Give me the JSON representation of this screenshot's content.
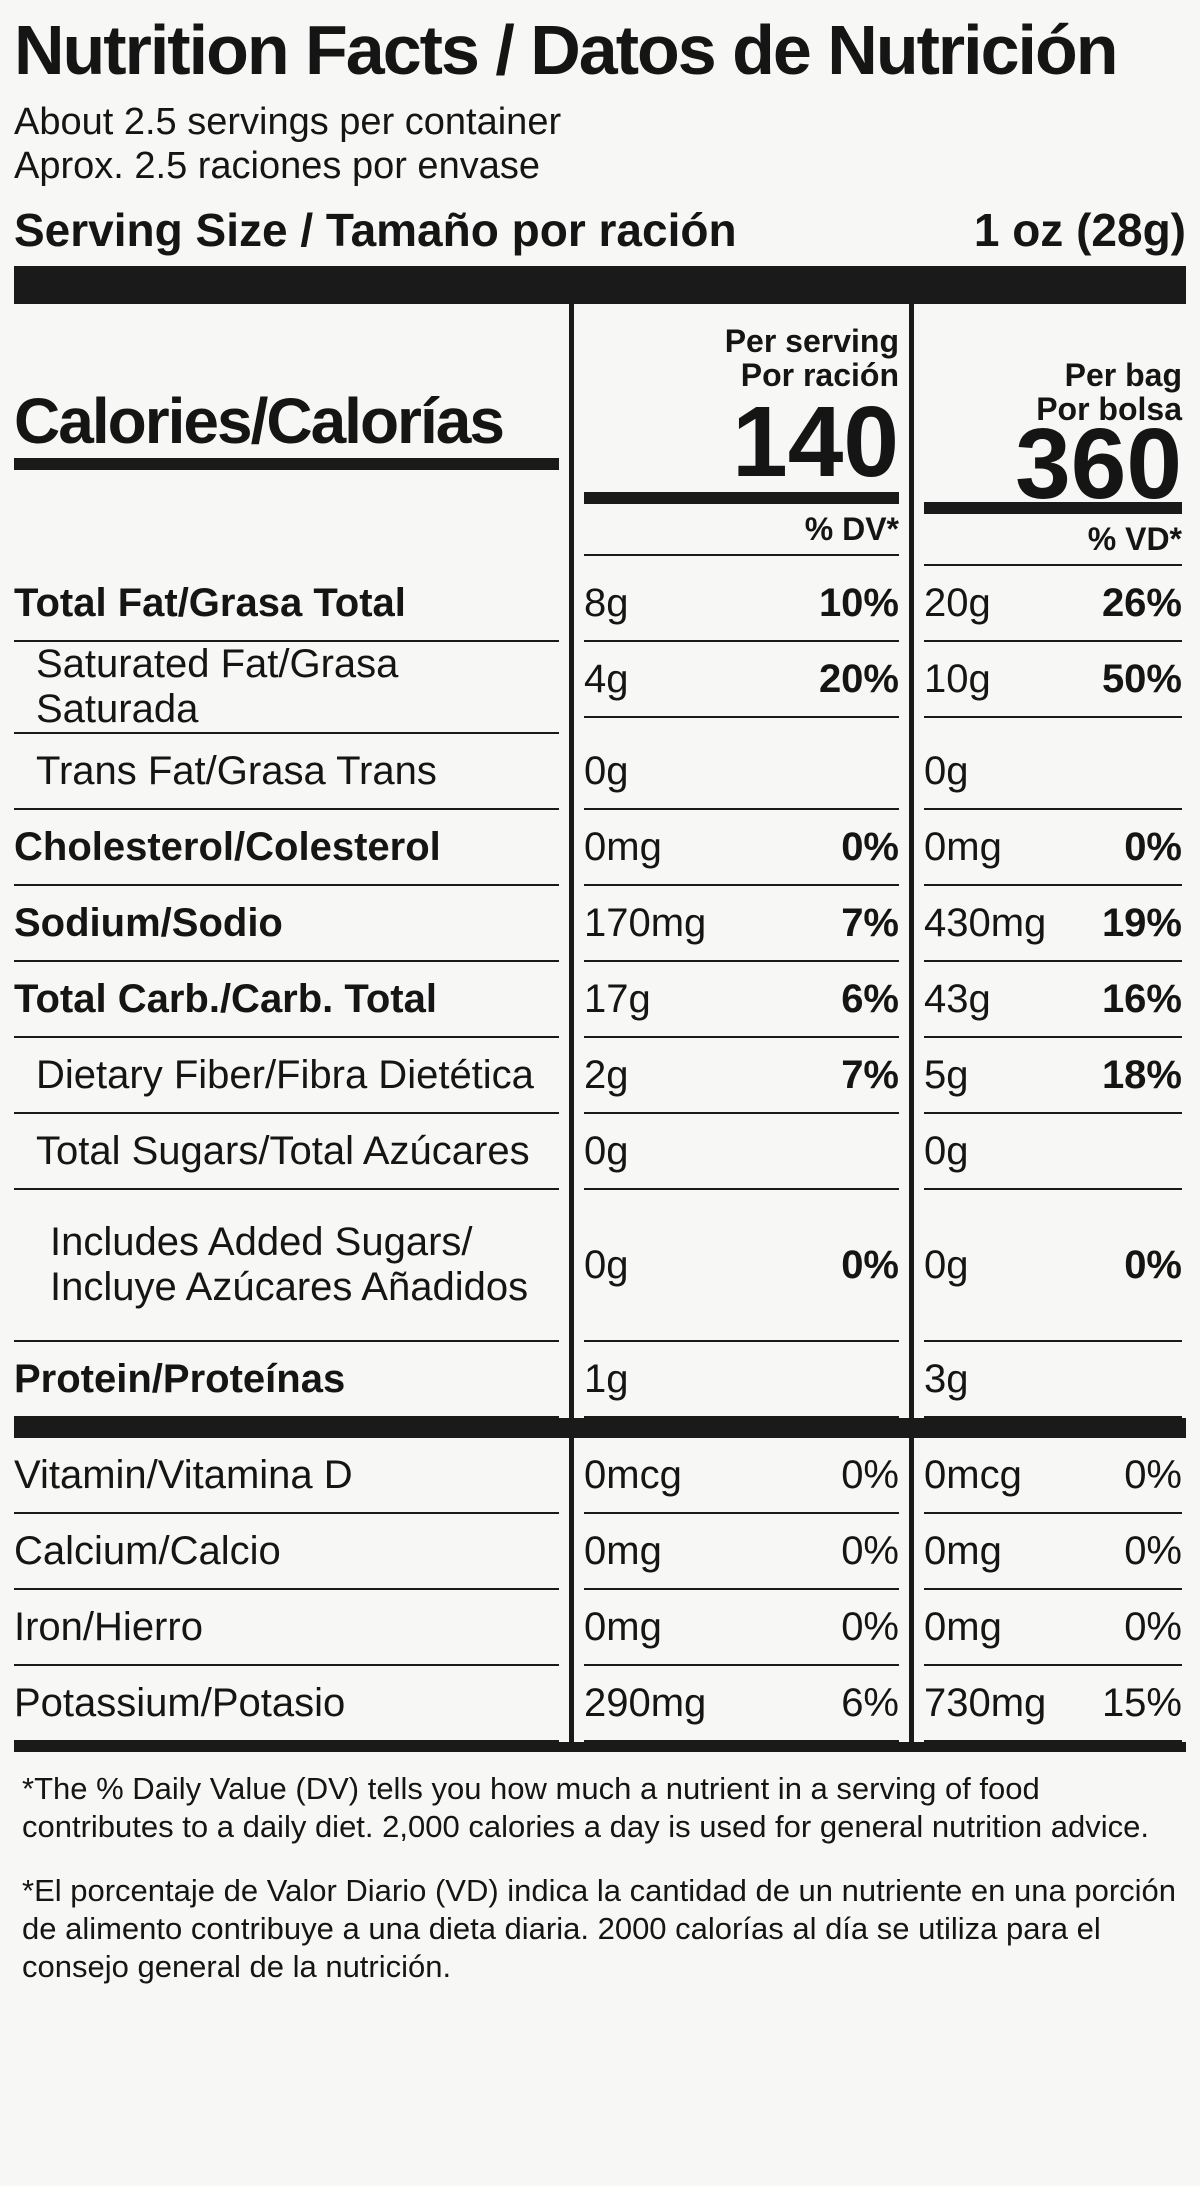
{
  "title": "Nutrition Facts / Datos de Nutrición",
  "servings": [
    "About 2.5 servings per container",
    "Aprox. 2.5 raciones por envase"
  ],
  "serving_size": {
    "label": "Serving Size / Tamaño por ración",
    "value": "1 oz (28g)"
  },
  "calories": {
    "label": "Calories/Calorías",
    "per_serving": {
      "header": [
        "Per serving",
        "Por ración"
      ],
      "value": "140",
      "dv_header": "% DV*"
    },
    "per_bag": {
      "header": [
        "Per bag",
        "Por bolsa"
      ],
      "value": "360",
      "dv_header": "% VD*"
    }
  },
  "nutrients": [
    {
      "name": [
        "Total Fat/Grasa Total"
      ],
      "serving": [
        "8g",
        "10%"
      ],
      "bag": [
        "20g",
        "26%"
      ]
    },
    {
      "name": [
        "Saturated Fat/Grasa Saturada"
      ],
      "serving": [
        "4g",
        "20%"
      ],
      "bag": [
        "10g",
        "50%"
      ]
    },
    {
      "name": [
        "Trans Fat/Grasa Trans"
      ],
      "serving": [
        "0g"
      ],
      "bag": [
        "0g"
      ]
    },
    {
      "name": [
        "Cholesterol/Colesterol"
      ],
      "serving": [
        "0mg",
        "0%"
      ],
      "bag": [
        "0mg",
        "0%"
      ]
    },
    {
      "name": [
        "Sodium/Sodio"
      ],
      "serving": [
        "170mg",
        "7%"
      ],
      "bag": [
        "430mg",
        "19%"
      ]
    },
    {
      "name": [
        "Total Carb./Carb. Total"
      ],
      "serving": [
        "17g",
        "6%"
      ],
      "bag": [
        "43g",
        "16%"
      ]
    },
    {
      "name": [
        "Dietary Fiber/Fibra Dietética"
      ],
      "serving": [
        "2g",
        "7%"
      ],
      "bag": [
        "5g",
        "18%"
      ]
    },
    {
      "name": [
        "Total Sugars/Total Azúcares"
      ],
      "serving": [
        "0g"
      ],
      "bag": [
        "0g"
      ]
    },
    {
      "name": [
        "Includes Added Sugars/",
        "Incluye Azúcares Añadidos"
      ],
      "serving": [
        "0g",
        "0%"
      ],
      "bag": [
        "0g",
        "0%"
      ]
    },
    {
      "name": [
        "Protein/Proteínas"
      ],
      "serving": [
        "1g"
      ],
      "bag": [
        "3g"
      ]
    }
  ],
  "vitamins": [
    {
      "name": [
        "Vitamin/Vitamina D"
      ],
      "serving": [
        "0mcg",
        "0%"
      ],
      "bag": [
        "0mcg",
        "0%"
      ]
    },
    {
      "name": [
        "Calcium/Calcio"
      ],
      "serving": [
        "0mg",
        "0%"
      ],
      "bag": [
        "0mg",
        "0%"
      ]
    },
    {
      "name": [
        "Iron/Hierro"
      ],
      "serving": [
        "0mg",
        "0%"
      ],
      "bag": [
        "0mg",
        "0%"
      ]
    },
    {
      "name": [
        "Potassium/Potasio"
      ],
      "serving": [
        "290mg",
        "6%"
      ],
      "bag": [
        "730mg",
        "15%"
      ]
    }
  ],
  "footnotes": [
    "*The % Daily Value (DV) tells you how much a nutrient in a serving of food contributes to a daily diet. 2,000 calories a day is used for general nutrition advice.",
    "*El porcentaje de Valor Diario (VD) indica la cantidad de un nutriente en una porción de alimento contribuye a una dieta diaria. 2000 calorías al día se utiliza para el consejo general de la nutrición."
  ]
}
